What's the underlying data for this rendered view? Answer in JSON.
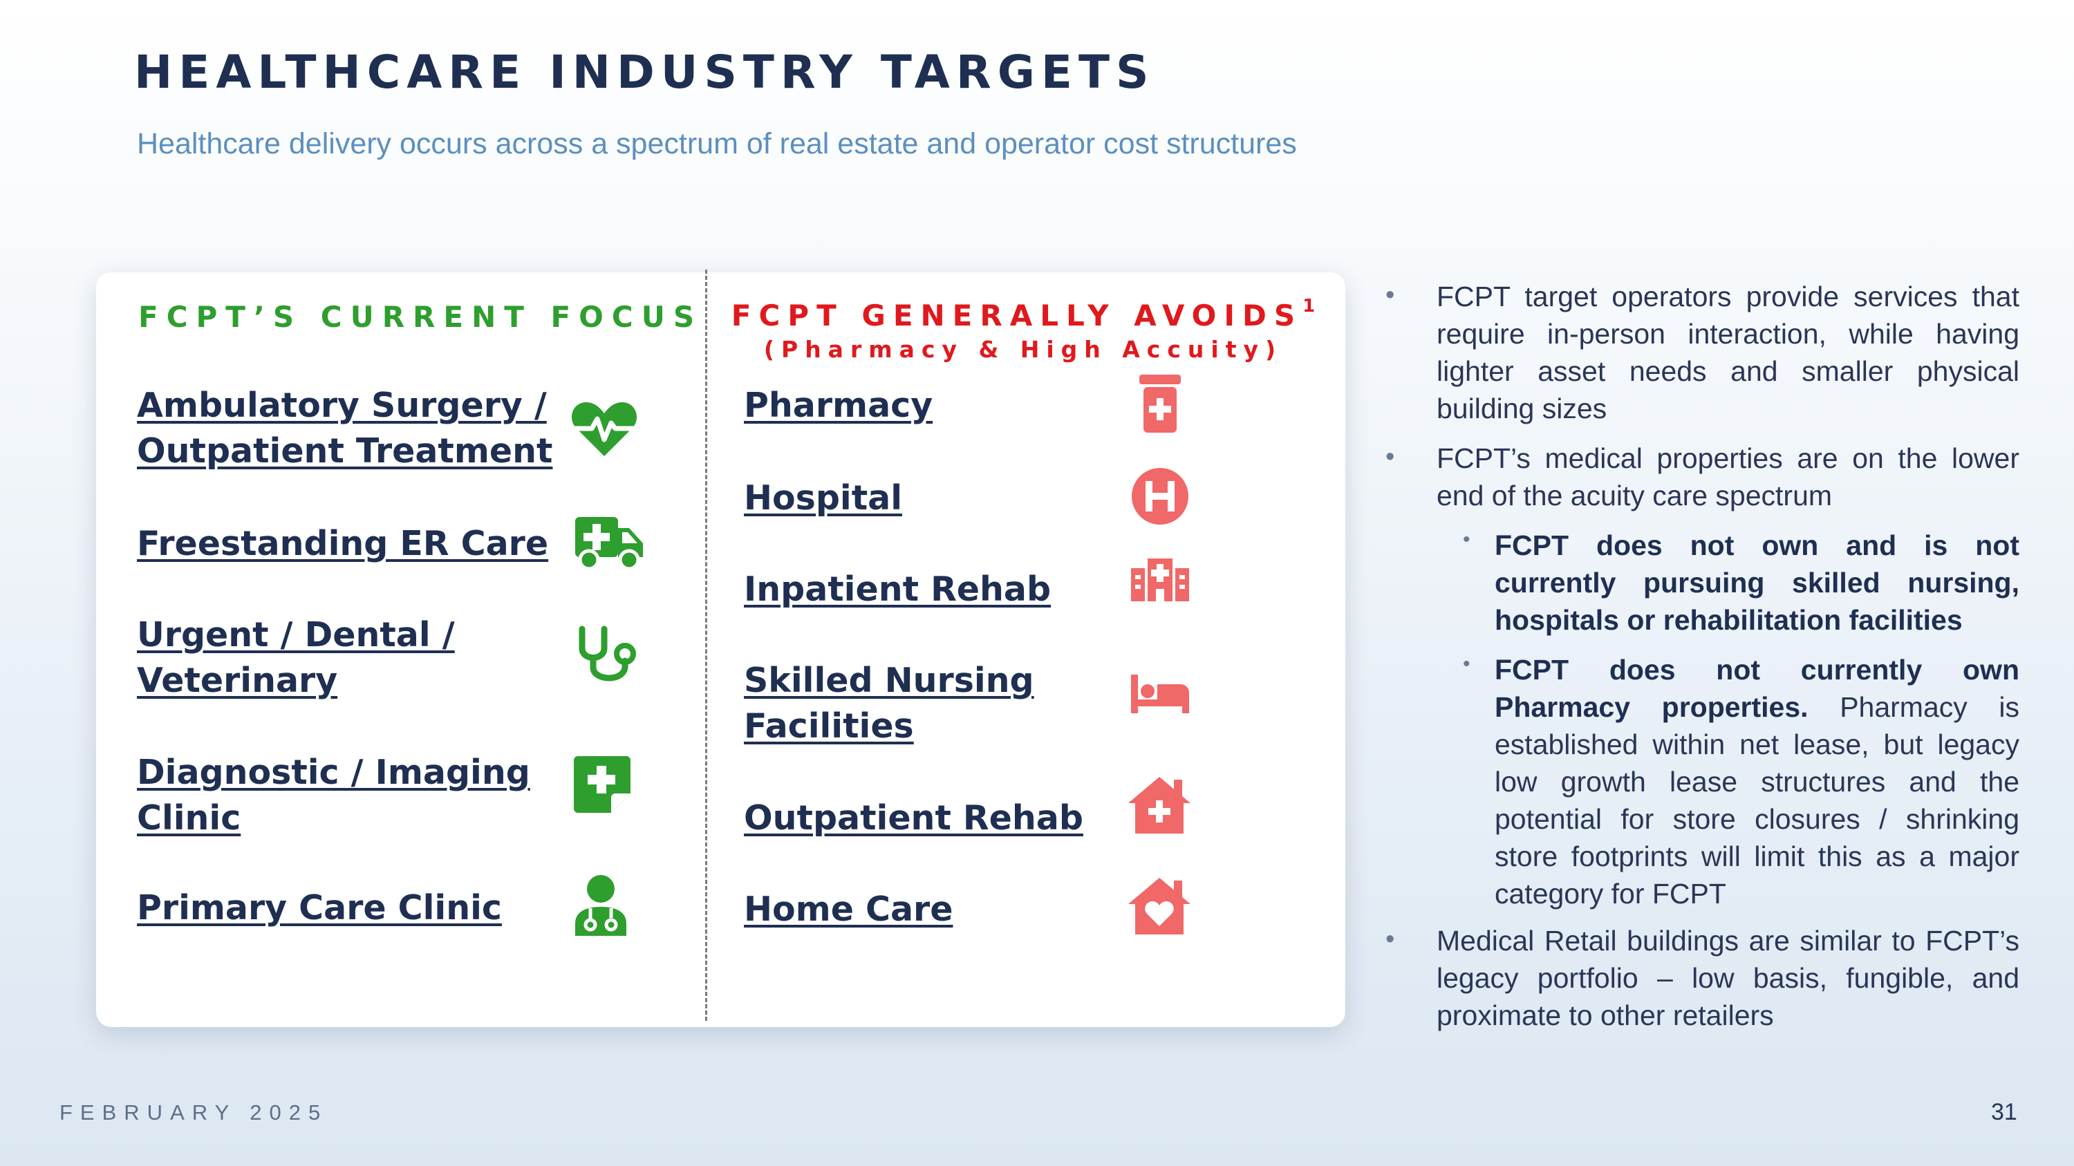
{
  "title": "HEALTHCARE INDUSTRY TARGETS",
  "subtitle": "Healthcare delivery occurs across a spectrum of real estate and operator cost structures",
  "left_column": {
    "heading": "FCPT’S CURRENT FOCUS",
    "items": [
      {
        "label": "Ambulatory Surgery /\nOutpatient Treatment",
        "icon": "heart-pulse-icon"
      },
      {
        "label": "Freestanding ER Care",
        "icon": "ambulance-icon"
      },
      {
        "label": "Urgent / Dental /\nVeterinary",
        "icon": "stethoscope-icon"
      },
      {
        "label": "Diagnostic / Imaging\nClinic",
        "icon": "medical-note-icon"
      },
      {
        "label": "Primary Care Clinic",
        "icon": "doctor-icon"
      }
    ],
    "color": "#2e9e2e"
  },
  "right_column": {
    "heading": "FCPT GENERALLY AVOIDS",
    "footnote_marker": "1",
    "subheading": "(Pharmacy & High Accuity)",
    "items": [
      {
        "label": "Pharmacy",
        "icon": "prescription-bottle-icon"
      },
      {
        "label": "Hospital",
        "icon": "hospital-h-icon"
      },
      {
        "label": "Inpatient Rehab",
        "icon": "hospital-building-icon"
      },
      {
        "label": "Skilled Nursing\nFacilities",
        "icon": "bed-icon"
      },
      {
        "label": "Outpatient Rehab",
        "icon": "house-medical-icon"
      },
      {
        "label": "Home Care",
        "icon": "house-heart-icon"
      }
    ],
    "color": "#e0191d",
    "icon_color": "#f06868"
  },
  "bullets": [
    {
      "text": "FCPT target operators provide services that require in-person interaction, while having lighter asset needs and smaller physical building sizes"
    },
    {
      "text": "FCPT’s medical properties are on the lower end of the acuity care spectrum"
    },
    {
      "bold": "FCPT does not own and is not currently pursuing skilled nursing, hospitals or rehabilitation facilities",
      "text": ""
    },
    {
      "bold": "FCPT does not currently own Pharmacy properties.",
      "text": " Pharmacy is established within net lease, but legacy low growth lease structures and the potential for store closures / shrinking store footprints will limit this as a major category for FCPT"
    },
    {
      "text": "Medical Retail buildings are similar to FCPT’s legacy portfolio – low basis, fungible, and proximate to other retailers"
    }
  ],
  "footer": {
    "date": "FEBRUARY 2025",
    "page_number": "31"
  }
}
